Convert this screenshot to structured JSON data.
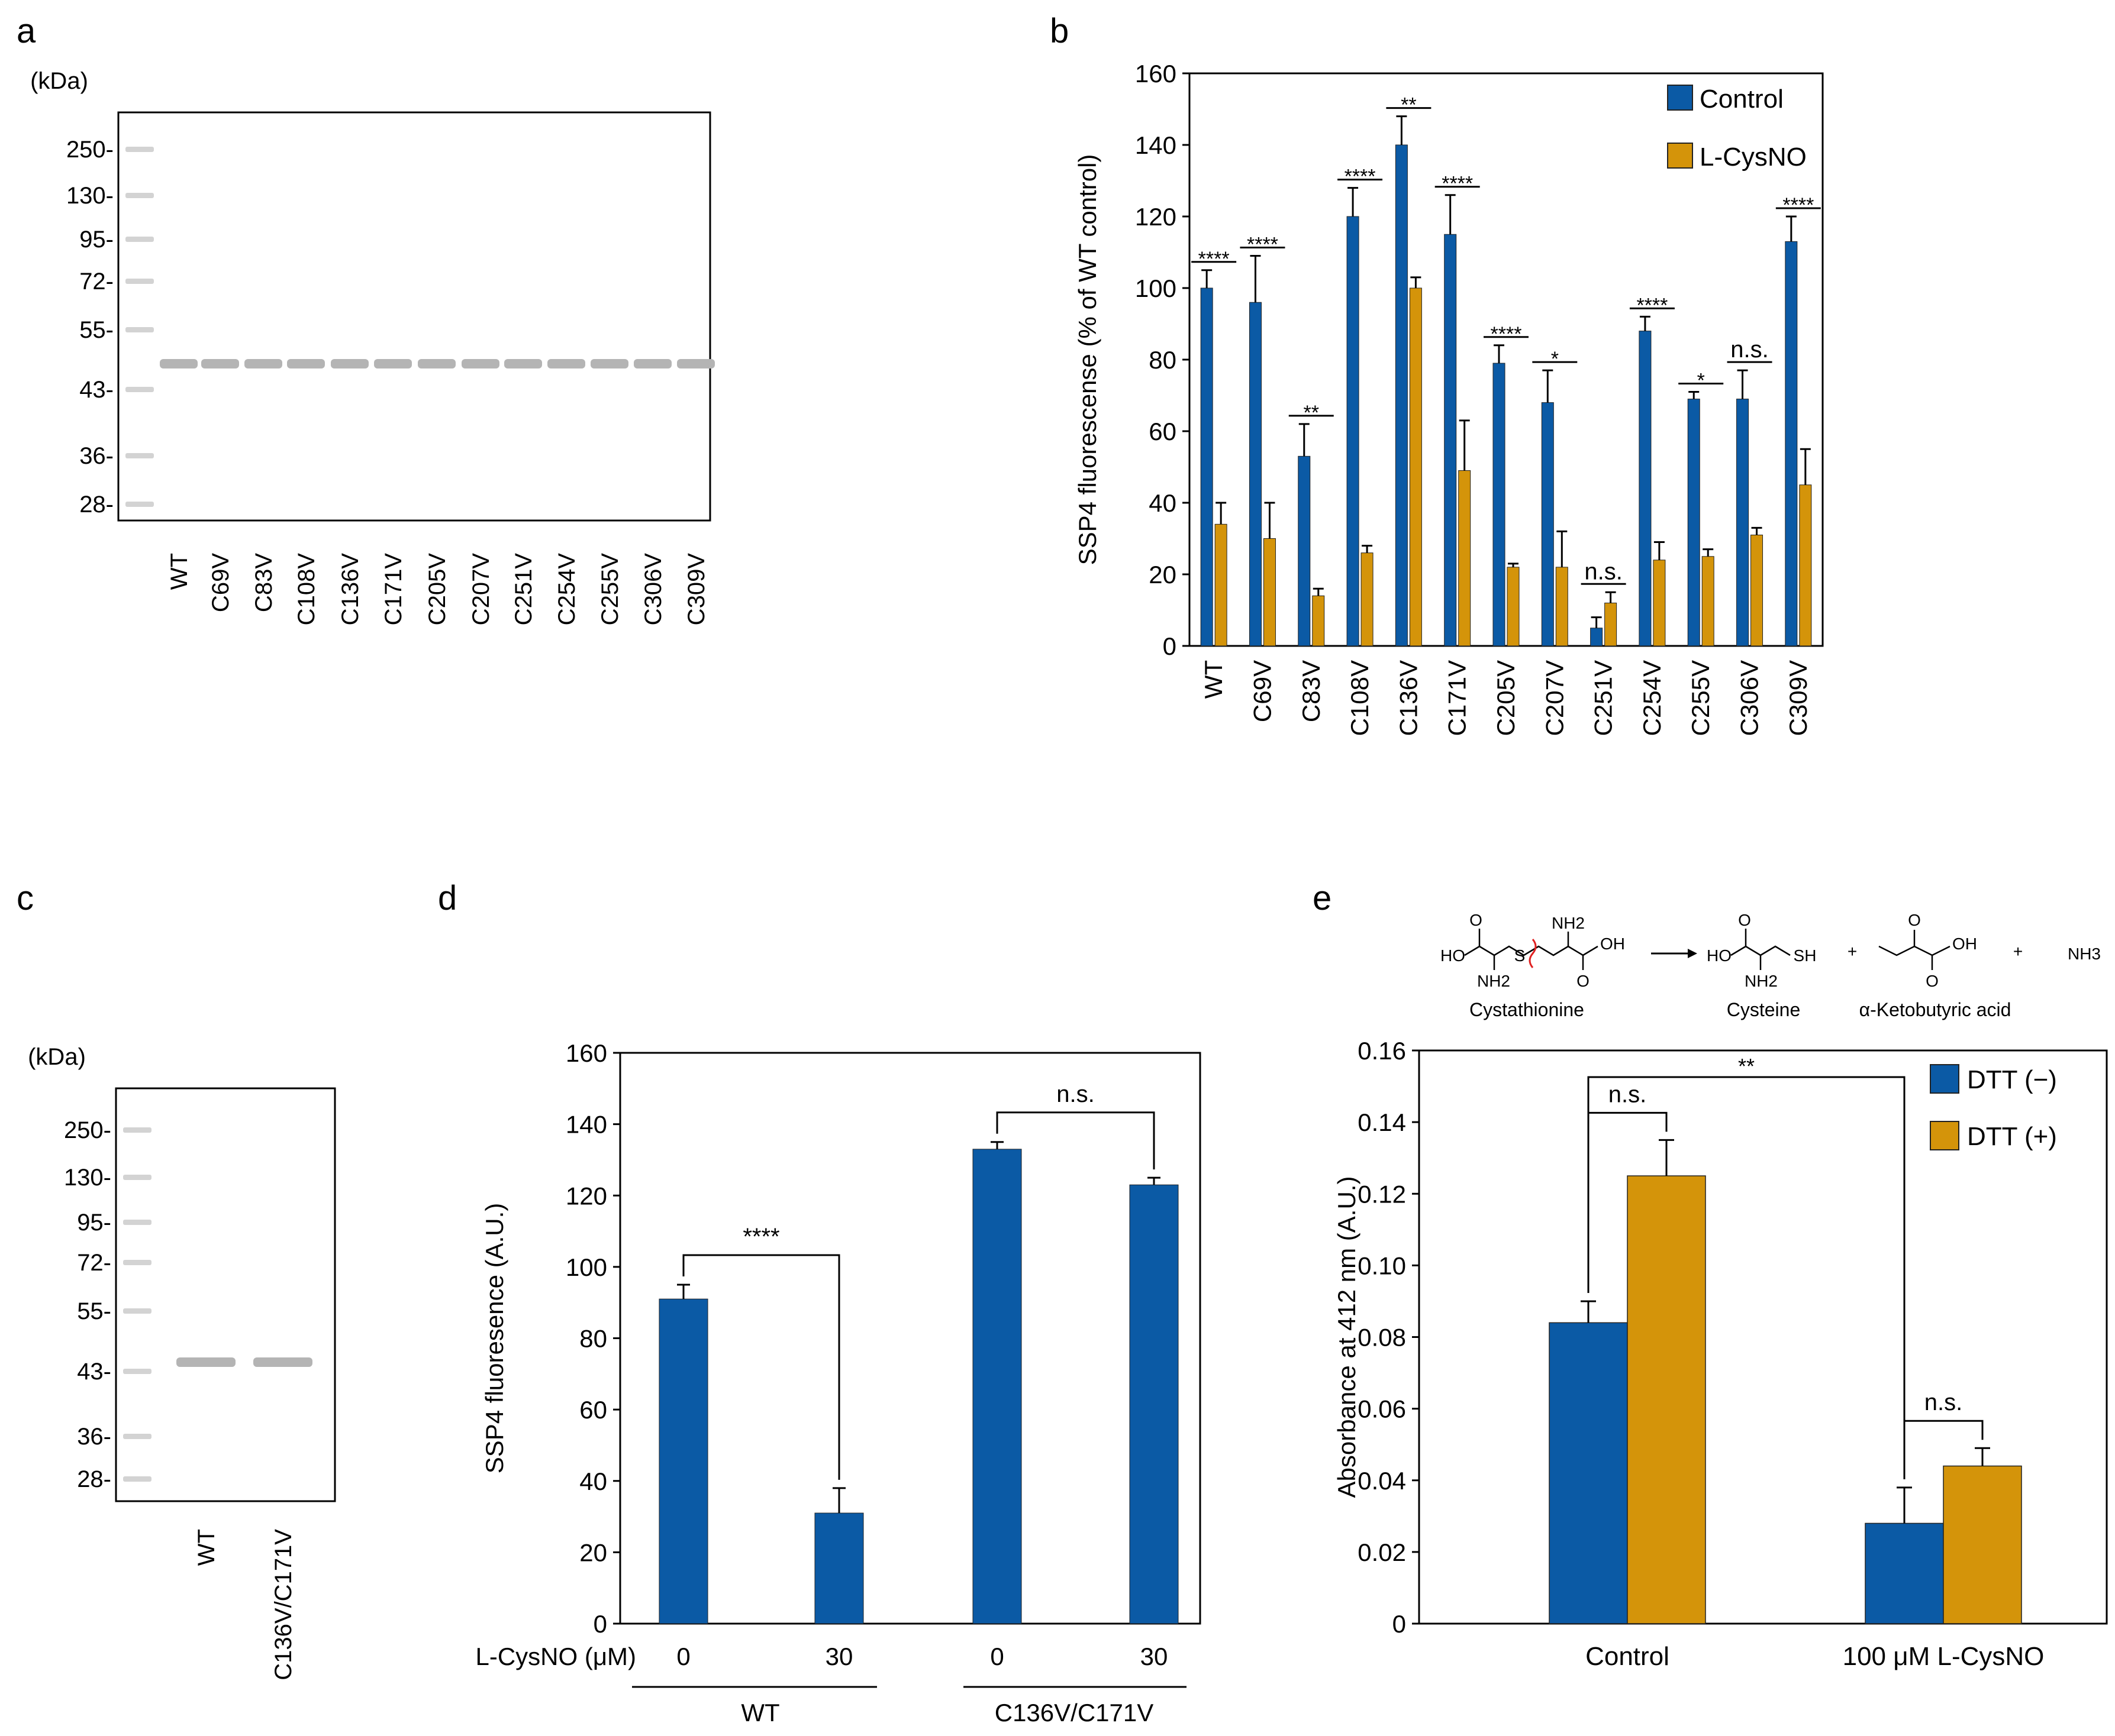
{
  "colors": {
    "control": "#0b5aa5",
    "treat": "#d4940a",
    "axis": "#000000"
  },
  "panel_a": {
    "label": "a",
    "kda_title": "(kDa)",
    "markers": [
      "250-",
      "130-",
      "95-",
      "72-",
      "55-",
      "43-",
      "36-",
      "28-"
    ],
    "lanes": [
      "WT",
      "C69V",
      "C83V",
      "C108V",
      "C136V",
      "C171V",
      "C205V",
      "C207V",
      "C251V",
      "C254V",
      "C255V",
      "C306V",
      "C309V"
    ]
  },
  "panel_c": {
    "label": "c",
    "kda_title": "(kDa)",
    "markers": [
      "250-",
      "130-",
      "95-",
      "72-",
      "55-",
      "43-",
      "36-",
      "28-"
    ],
    "lanes": [
      "WT",
      "C136V/C171V"
    ]
  },
  "panel_e_scheme": {
    "cystathionine": "Cystathionine",
    "cysteine": "Cysteine",
    "ketobutyric": "α-Ketobutyric acid",
    "ammonia": "NH3",
    "plus": "+",
    "ho": "HO",
    "oh": "OH",
    "o": "O",
    "s": "S",
    "sh": "SH",
    "nh2": "NH2"
  },
  "chart_data": [
    {
      "id": "b",
      "label": "b",
      "type": "bar",
      "title": "",
      "xlabel": "",
      "ylabel": "SSP4 fluorescense (% of WT control)",
      "ylim": [
        0,
        160
      ],
      "yticks": [
        0,
        20,
        40,
        60,
        80,
        100,
        120,
        140,
        160
      ],
      "categories": [
        "WT",
        "C69V",
        "C83V",
        "C108V",
        "C136V",
        "C171V",
        "C205V",
        "C207V",
        "C251V",
        "C254V",
        "C255V",
        "C306V",
        "C309V"
      ],
      "series": [
        {
          "name": "Control",
          "values": [
            100,
            96,
            53,
            120,
            140,
            115,
            79,
            68,
            5,
            88,
            69,
            69,
            113
          ],
          "errors": [
            5,
            13,
            9,
            8,
            8,
            11,
            5,
            9,
            3,
            4,
            2,
            8,
            7
          ]
        },
        {
          "name": "L-CysNO",
          "values": [
            34,
            30,
            14,
            26,
            100,
            49,
            22,
            22,
            12,
            24,
            25,
            31,
            45
          ],
          "errors": [
            6,
            10,
            2,
            2,
            3,
            14,
            1,
            10,
            3,
            5,
            2,
            2,
            10
          ]
        }
      ],
      "significance": [
        "****",
        "****",
        "**",
        "****",
        "**",
        "****",
        "****",
        "*",
        "n.s.",
        "****",
        "*",
        "n.s.",
        "****"
      ],
      "legend": "top-right"
    },
    {
      "id": "d",
      "label": "d",
      "type": "bar",
      "title": "",
      "xlabel": "",
      "ylabel": "SSP4 fluoresence (A.U.)",
      "ylim": [
        0,
        160
      ],
      "yticks": [
        0,
        20,
        40,
        60,
        80,
        100,
        120,
        140,
        160
      ],
      "row_label": "L-CysNO (μM)",
      "categories": [
        "0",
        "30",
        "0",
        "30"
      ],
      "groups": [
        "WT",
        "C136V/C171V"
      ],
      "values": [
        91,
        31,
        133,
        123
      ],
      "errors": [
        4,
        7,
        2,
        2
      ],
      "brackets": [
        {
          "from": 0,
          "to": 1,
          "label": "****"
        },
        {
          "from": 2,
          "to": 3,
          "label": "n.s."
        }
      ]
    },
    {
      "id": "e",
      "label": "e",
      "type": "bar",
      "title": "",
      "xlabel": "",
      "ylabel": "Absorbance at 412 nm (A.U.)",
      "ylim": [
        0,
        0.16
      ],
      "yticks": [
        "0",
        "0.02",
        "0.04",
        "0.06",
        "0.08",
        "0.10",
        "0.12",
        "0.14",
        "0.16"
      ],
      "categories": [
        "Control",
        "100 μM L-CysNO"
      ],
      "series": [
        {
          "name": "DTT (−)",
          "values": [
            0.084,
            0.028
          ],
          "errors": [
            0.006,
            0.01
          ]
        },
        {
          "name": "DTT (+)",
          "values": [
            0.125,
            0.044
          ],
          "errors": [
            0.01,
            0.005
          ]
        }
      ],
      "brackets": [
        {
          "label": "n.s.",
          "type": "within",
          "group": 0
        },
        {
          "label": "n.s.",
          "type": "within",
          "group": 1
        },
        {
          "label": "**",
          "type": "between"
        }
      ],
      "legend": "top-right"
    }
  ]
}
